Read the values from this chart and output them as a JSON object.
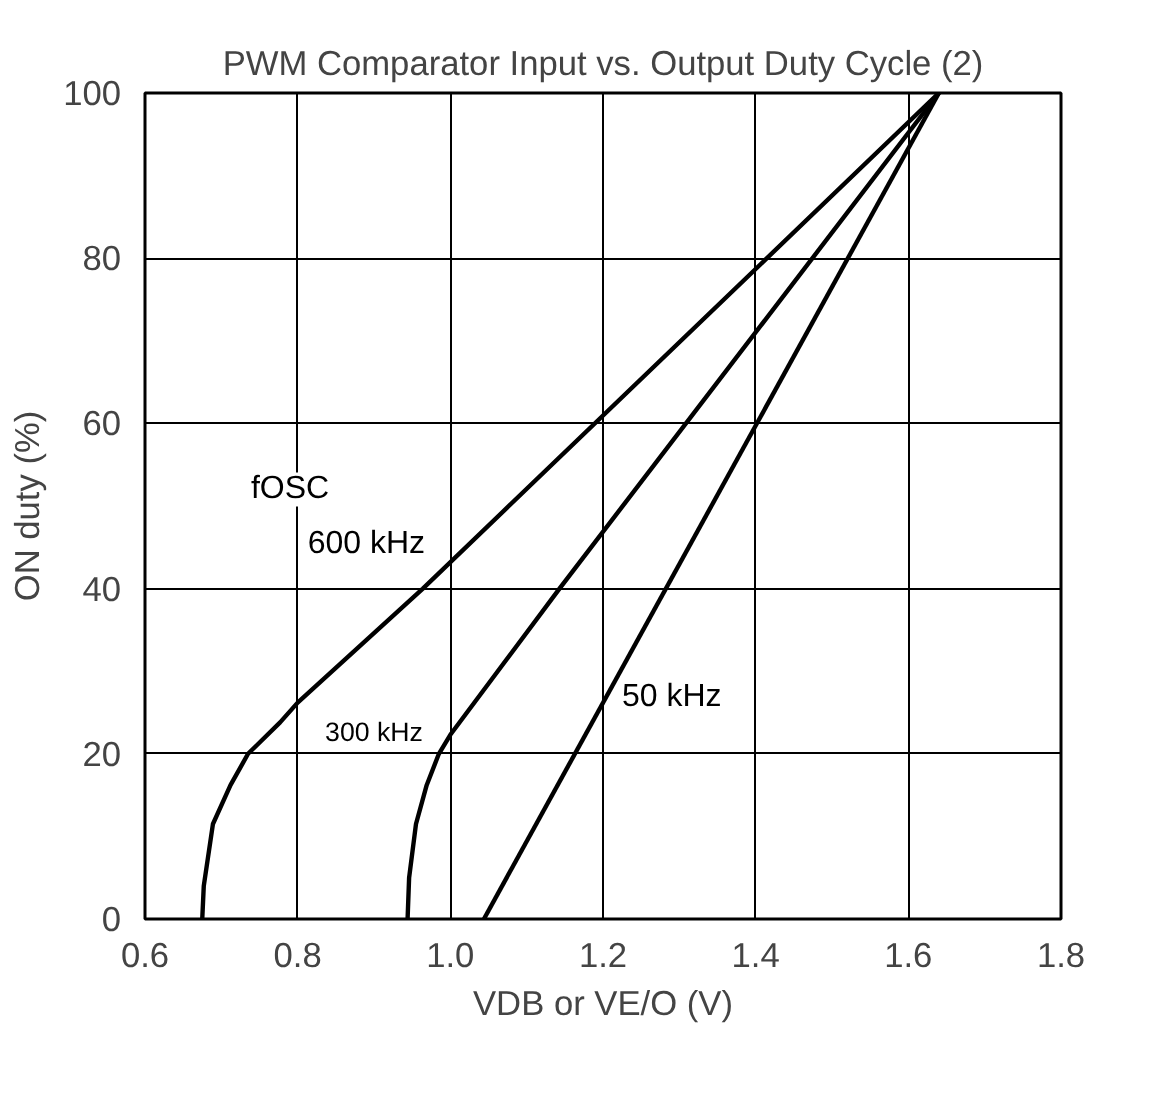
{
  "chart_data": {
    "type": "line",
    "title": "PWM Comparator Input vs. Output Duty Cycle (2)",
    "xlabel": "VDB or VE/O (V)",
    "ylabel": "ON duty (%)",
    "series": [
      {
        "name": "600 kHz",
        "color": "#000000",
        "x": [
          0.675,
          0.677,
          0.689,
          0.712,
          0.735,
          0.777,
          0.8,
          0.964,
          1.64
        ],
        "values": [
          0,
          4,
          11.5,
          16.2,
          20,
          23.8,
          26.2,
          40,
          100
        ]
      },
      {
        "name": "300 kHz",
        "color": "#000000",
        "x": [
          0.944,
          0.946,
          0.955,
          0.969,
          0.985,
          1.0,
          1.143,
          1.64
        ],
        "values": [
          0,
          5,
          11.5,
          16.2,
          20,
          22.3,
          40,
          100
        ]
      },
      {
        "name": "50 kHz",
        "color": "#000000",
        "x": [
          1.044,
          1.64
        ],
        "values": [
          0,
          100
        ]
      }
    ],
    "annotations": [
      "fOSC"
    ],
    "xlim": [
      0.6,
      1.8
    ],
    "ylim": [
      0,
      100
    ],
    "xticks": [
      0.6,
      0.8,
      {
        "value": 1,
        "label": "1.0"
      },
      1.2,
      1.4,
      1.6,
      1.8
    ],
    "yticks": [
      0,
      20,
      40,
      60,
      80,
      100
    ],
    "grid": true,
    "marker": "none",
    "line_style": "solid",
    "legend": false
  }
}
